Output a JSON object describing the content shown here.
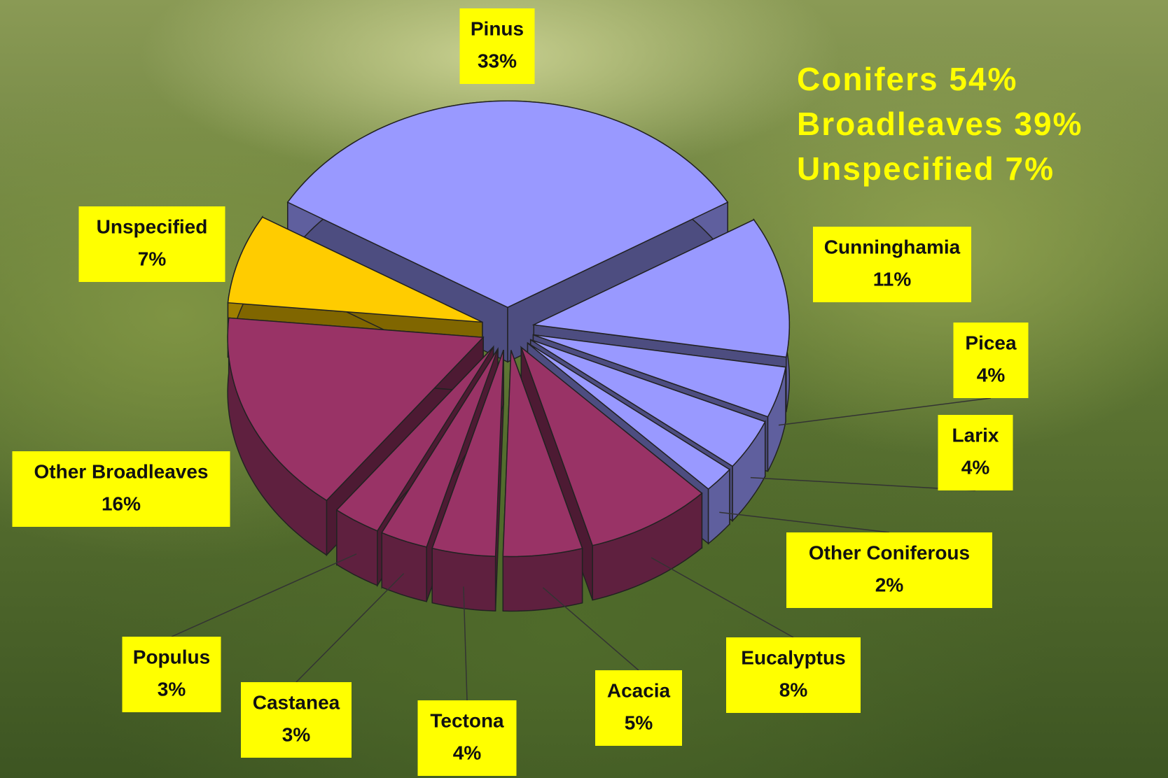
{
  "chart_data": {
    "type": "pie3d",
    "categories": [
      "Pinus",
      "Cunninghamia",
      "Picea",
      "Larix",
      "Other Coniferous",
      "Eucalyptus",
      "Acacia",
      "Tectona",
      "Castanea",
      "Populus",
      "Other Broadleaves",
      "Unspecified"
    ],
    "values": [
      33,
      11,
      4,
      4,
      2,
      8,
      5,
      4,
      3,
      3,
      16,
      7
    ],
    "value_labels": [
      "33%",
      "11%",
      "4%",
      "4%",
      "2%",
      "8%",
      "5%",
      "4%",
      "3%",
      "3%",
      "16%",
      "7%"
    ],
    "colors": [
      "#9999ff",
      "#9999ff",
      "#9999ff",
      "#9999ff",
      "#9999ff",
      "#993366",
      "#993366",
      "#993366",
      "#993366",
      "#993366",
      "#993366",
      "#ffcc00"
    ],
    "annotations": [
      "Conifers 54%",
      "Broadleaves 39%",
      "Unspecified 7%"
    ]
  }
}
